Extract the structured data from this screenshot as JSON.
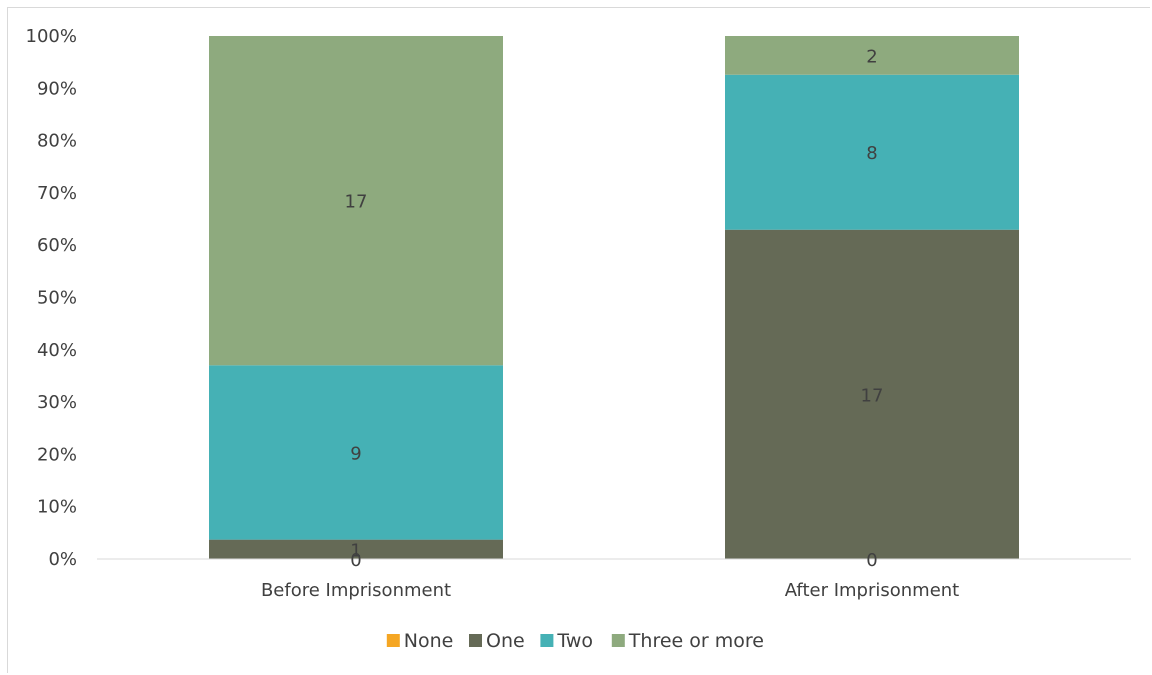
{
  "chart_data": {
    "type": "bar",
    "stacked": "percent",
    "categories": [
      "Before Imprisonment",
      "After Imprisonment"
    ],
    "series": [
      {
        "name": "None",
        "values": [
          0,
          0
        ],
        "labels": [
          "0",
          "0"
        ],
        "color": "#f5a623"
      },
      {
        "name": "One",
        "values": [
          1,
          17
        ],
        "labels": [
          "1",
          "17"
        ],
        "color": "#656a56"
      },
      {
        "name": "Two",
        "values": [
          9,
          8
        ],
        "labels": [
          "9",
          "8"
        ],
        "color": "#45b1b5"
      },
      {
        "name": "Three or more",
        "values": [
          17,
          2
        ],
        "labels": [
          "17",
          "2"
        ],
        "color": "#8eaa7e"
      }
    ],
    "yticks": [
      "0%",
      "10%",
      "20%",
      "30%",
      "40%",
      "50%",
      "60%",
      "70%",
      "80%",
      "90%",
      "100%"
    ],
    "ylim": [
      0,
      100
    ],
    "grid": false,
    "legend_position": "bottom"
  }
}
